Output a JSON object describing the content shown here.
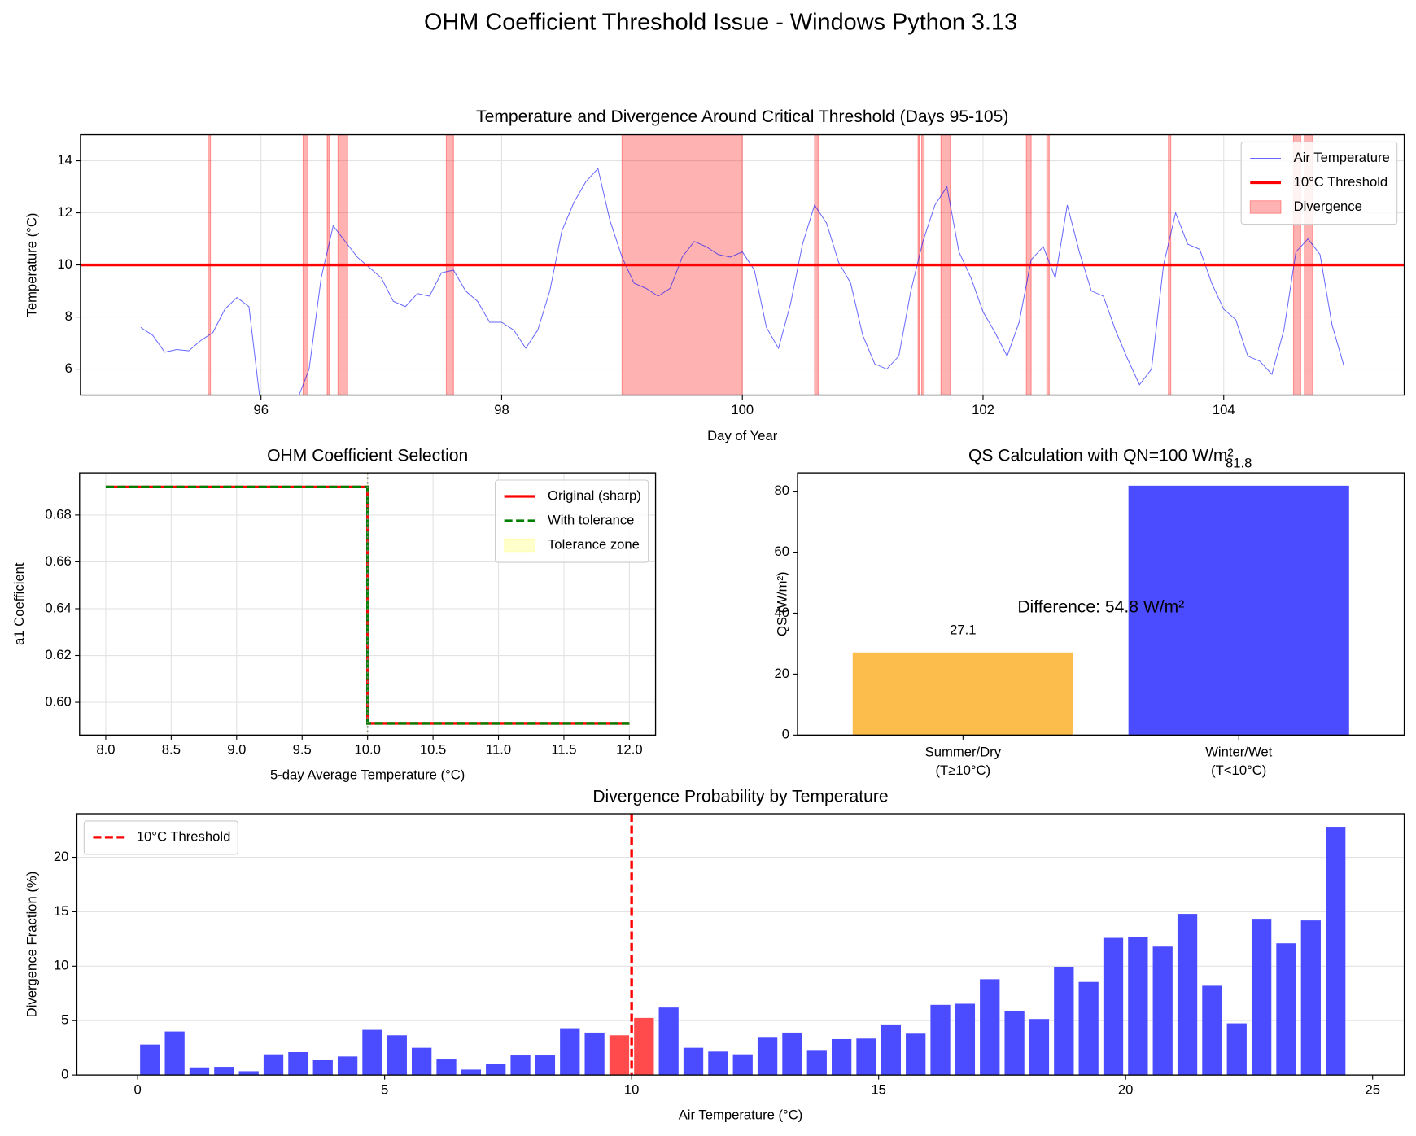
{
  "title": "OHM Coefficient Threshold Issue - Windows Python 3.13",
  "chart_data": [
    {
      "type": "line",
      "title": "Temperature and Divergence Around Critical Threshold (Days 95-105)",
      "xlabel": "Day of Year",
      "ylabel": "Temperature (°C)",
      "x": [
        95,
        95.1,
        95.2,
        95.3,
        95.4,
        95.5,
        95.6,
        95.7,
        95.8,
        95.9,
        96,
        96.1,
        96.2,
        96.3,
        96.4,
        96.5,
        96.6,
        96.7,
        96.8,
        96.9,
        97,
        97.1,
        97.2,
        97.3,
        97.4,
        97.5,
        97.6,
        97.7,
        97.8,
        97.9,
        98,
        98.1,
        98.2,
        98.3,
        98.4,
        98.5,
        98.6,
        98.7,
        98.8,
        98.9,
        99,
        99.1,
        99.2,
        99.3,
        99.4,
        99.5,
        99.6,
        99.7,
        99.8,
        99.9,
        100,
        100.1,
        100.2,
        100.3,
        100.4,
        100.5,
        100.6,
        100.7,
        100.8,
        100.9,
        101,
        101.1,
        101.2,
        101.3,
        101.4,
        101.5,
        101.6,
        101.7,
        101.8,
        101.9,
        102,
        102.1,
        102.2,
        102.3,
        102.4,
        102.5,
        102.6,
        102.7,
        102.8,
        102.9,
        103,
        103.1,
        103.2,
        103.3,
        103.4,
        103.5,
        103.6,
        103.7,
        103.8,
        103.9,
        104,
        104.1,
        104.2,
        104.3,
        104.4,
        104.5,
        104.6,
        104.7,
        104.8,
        104.9,
        105
      ],
      "series": [
        {
          "name": "Air Temperature",
          "color": "#0000ff",
          "values": [
            7.6,
            7.3,
            6.65,
            6.75,
            6.7,
            7.1,
            7.4,
            8.3,
            8.75,
            8.4,
            4.5,
            3.5,
            3.8,
            4.8,
            6.0,
            9.5,
            11.5,
            10.9,
            10.3,
            9.9,
            9.5,
            8.6,
            8.4,
            8.9,
            8.8,
            9.7,
            9.8,
            9.0,
            8.6,
            7.8,
            7.8,
            7.5,
            6.8,
            7.5,
            9.0,
            11.3,
            12.4,
            13.2,
            13.7,
            11.7,
            10.3,
            9.3,
            9.1,
            8.8,
            9.1,
            10.3,
            10.9,
            10.7,
            10.4,
            10.3,
            10.5,
            9.8,
            7.6,
            6.8,
            8.5,
            10.8,
            12.3,
            11.6,
            10.1,
            9.3,
            7.3,
            6.2,
            6.0,
            6.5,
            9.0,
            10.9,
            12.3,
            13.0,
            10.5,
            9.5,
            8.2,
            7.4,
            6.5,
            7.8,
            10.2,
            10.7,
            9.5,
            12.3,
            10.5,
            9.0,
            8.8,
            7.5,
            6.4,
            5.4,
            6.0,
            10.0,
            12.0,
            10.8,
            10.6,
            9.3,
            8.3,
            7.9,
            6.5,
            6.3,
            5.8,
            7.5,
            10.5,
            11.0,
            10.4,
            7.7,
            6.1
          ]
        }
      ],
      "hlines": [
        {
          "name": "10°C Threshold",
          "value": 10,
          "color": "#ff0000",
          "style": "solid"
        }
      ],
      "spans": {
        "name": "Divergence",
        "color": "#ff0000",
        "ranges": [
          [
            95.56,
            95.58
          ],
          [
            96.35,
            96.39
          ],
          [
            96.55,
            96.57
          ],
          [
            96.64,
            96.72
          ],
          [
            97.54,
            97.6
          ],
          [
            99.0,
            100.0
          ],
          [
            100.6,
            100.63
          ],
          [
            101.46,
            101.47
          ],
          [
            101.49,
            101.51
          ],
          [
            101.65,
            101.73
          ],
          [
            102.36,
            102.4
          ],
          [
            102.53,
            102.55
          ],
          [
            103.54,
            103.56
          ],
          [
            104.58,
            104.64
          ],
          [
            104.67,
            104.74
          ]
        ]
      },
      "xlim": [
        94.5,
        105.5
      ],
      "ylim": [
        5,
        15
      ],
      "xticks": [
        96,
        98,
        100,
        102,
        104
      ],
      "yticks": [
        6,
        8,
        10,
        12,
        14
      ],
      "grid": true,
      "legend": "upper right"
    },
    {
      "type": "line",
      "title": "OHM Coefficient Selection",
      "xlabel": "5-day Average Temperature (°C)",
      "ylabel": "a1 Coefficient",
      "series": [
        {
          "name": "Original (sharp)",
          "color": "#ff0000",
          "style": "solid",
          "x": [
            8,
            10,
            10,
            12
          ],
          "values": [
            0.692,
            0.692,
            0.591,
            0.591
          ]
        },
        {
          "name": "With tolerance",
          "color": "#008000",
          "style": "dashed",
          "x": [
            8,
            10,
            10,
            12
          ],
          "values": [
            0.692,
            0.692,
            0.591,
            0.591
          ]
        }
      ],
      "vlines": [
        {
          "value": 10,
          "color": "#808080",
          "style": "dotted"
        }
      ],
      "zones": [
        {
          "name": "Tolerance zone",
          "color": "#ffff00",
          "range": [
            9.999,
            10.001
          ]
        }
      ],
      "xlim": [
        7.8,
        12.2
      ],
      "ylim": [
        0.586,
        0.698
      ],
      "xticks": [
        {
          "value": 8,
          "label": "8.0"
        },
        8.5,
        {
          "value": 9,
          "label": "9.0"
        },
        9.5,
        {
          "value": 10,
          "label": "10.0"
        },
        10.5,
        {
          "value": 11,
          "label": "11.0"
        },
        11.5,
        {
          "value": 12,
          "label": "12.0"
        }
      ],
      "yticks": [
        {
          "value": 0.6,
          "label": "0.60"
        },
        0.62,
        0.64,
        0.66,
        0.68
      ],
      "grid": true,
      "legend": "upper right"
    },
    {
      "type": "bar",
      "title": "QS Calculation with QN=100 W/m²",
      "ylabel": "QS (W/m²)",
      "categories": [
        "Summer/Dry\n(T≥10°C)",
        "Winter/Wet\n(T<10°C)"
      ],
      "values": [
        27.1,
        81.8
      ],
      "colors": [
        "#fdbd4c",
        "#4b4bff"
      ],
      "annotation": {
        "text": "Difference: 54.8 W/m²",
        "color": "#ff0000"
      },
      "ylim": [
        0,
        86
      ],
      "yticks": [
        0,
        20,
        40,
        60,
        80
      ],
      "grid": false,
      "value_labels_shown": true
    },
    {
      "type": "bar",
      "title": "Divergence Probability by Temperature",
      "xlabel": "Air Temperature (°C)",
      "ylabel": "Divergence Fraction (%)",
      "x": [
        0.25,
        0.75,
        1.25,
        1.75,
        2.25,
        2.75,
        3.25,
        3.75,
        4.25,
        4.75,
        5.25,
        5.75,
        6.25,
        6.75,
        7.25,
        7.75,
        8.25,
        8.75,
        9.25,
        9.75,
        10.25,
        10.75,
        11.25,
        11.75,
        12.25,
        12.75,
        13.25,
        13.75,
        14.25,
        14.75,
        15.25,
        15.75,
        16.25,
        16.75,
        17.25,
        17.75,
        18.25,
        18.75,
        19.25,
        19.75,
        20.25,
        20.75,
        21.25,
        21.75,
        22.25,
        22.75,
        23.25,
        23.75,
        24.25
      ],
      "values": [
        2.8,
        4.0,
        0.7,
        0.75,
        0.35,
        1.9,
        2.1,
        1.4,
        1.7,
        4.15,
        3.65,
        2.5,
        1.5,
        0.5,
        1.0,
        1.8,
        1.8,
        4.3,
        3.9,
        3.65,
        5.25,
        6.2,
        2.5,
        2.15,
        1.9,
        3.5,
        3.9,
        2.3,
        3.3,
        3.35,
        4.65,
        3.8,
        6.45,
        6.55,
        8.8,
        5.9,
        5.15,
        9.95,
        8.55,
        12.6,
        12.7,
        11.8,
        14.8,
        8.2,
        4.75,
        14.35,
        12.1,
        14.2,
        22.8
      ],
      "colors": [
        "#4b4bff",
        "#4b4bff",
        "#4b4bff",
        "#4b4bff",
        "#4b4bff",
        "#4b4bff",
        "#4b4bff",
        "#4b4bff",
        "#4b4bff",
        "#4b4bff",
        "#4b4bff",
        "#4b4bff",
        "#4b4bff",
        "#4b4bff",
        "#4b4bff",
        "#4b4bff",
        "#4b4bff",
        "#4b4bff",
        "#4b4bff",
        "#ff4b4b",
        "#ff4b4b",
        "#4b4bff",
        "#4b4bff",
        "#4b4bff",
        "#4b4bff",
        "#4b4bff",
        "#4b4bff",
        "#4b4bff",
        "#4b4bff",
        "#4b4bff",
        "#4b4bff",
        "#4b4bff",
        "#4b4bff",
        "#4b4bff",
        "#4b4bff",
        "#4b4bff",
        "#4b4bff",
        "#4b4bff",
        "#4b4bff",
        "#4b4bff",
        "#4b4bff",
        "#4b4bff",
        "#4b4bff",
        "#4b4bff",
        "#4b4bff",
        "#4b4bff",
        "#4b4bff",
        "#4b4bff",
        "#4b4bff"
      ],
      "vlines": [
        {
          "name": "10°C Threshold",
          "value": 10,
          "color": "#ff0000",
          "style": "dashed"
        }
      ],
      "xlim": [
        -1.23,
        25.64
      ],
      "ylim": [
        0,
        24
      ],
      "xticks": [
        0,
        5,
        10,
        15,
        20,
        25
      ],
      "yticks": [
        0,
        5,
        10,
        15,
        20
      ],
      "grid": "y",
      "legend": "upper left"
    }
  ]
}
